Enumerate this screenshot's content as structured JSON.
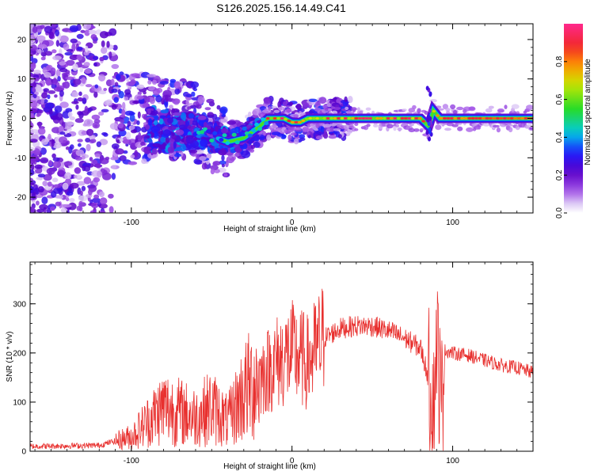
{
  "title": "S126.2025.156.14.49.C41",
  "chart_data": [
    {
      "type": "heatmap",
      "xlabel": "Height of straight line (km)",
      "ylabel": "Frequency (Hz)",
      "xlim": [
        -163,
        150
      ],
      "ylim": [
        -24,
        24
      ],
      "xticks": [
        -100,
        0,
        100
      ],
      "yticks": [
        -20,
        -10,
        0,
        10,
        20
      ],
      "colorbar": {
        "label": "Normalized spectral amplitude",
        "ticks": [
          "0.0",
          "0.2",
          "0.4",
          "0.6",
          "0.8"
        ],
        "range": [
          0,
          1
        ]
      },
      "ridge_frequency": [
        [
          -163,
          null
        ],
        [
          -60,
          -3
        ],
        [
          -40,
          -6
        ],
        [
          -30,
          -5
        ],
        [
          -20,
          -2
        ],
        [
          -15,
          0
        ],
        [
          -5,
          0
        ],
        [
          0,
          -1
        ],
        [
          5,
          -1
        ],
        [
          10,
          0
        ],
        [
          80,
          0
        ],
        [
          85,
          -2
        ],
        [
          88,
          2
        ],
        [
          92,
          0
        ],
        [
          150,
          0
        ]
      ]
    },
    {
      "type": "line",
      "xlabel": "Height of straight line (km)",
      "ylabel": "SNR (10 * v/v)",
      "xlim": [
        -163,
        150
      ],
      "ylim": [
        0,
        385
      ],
      "xticks": [
        -100,
        0,
        100
      ],
      "yticks": [
        0,
        100,
        200,
        300
      ],
      "series": [
        {
          "color": "#e8302e",
          "envelope": [
            [
              -163,
              10
            ],
            [
              -120,
              12
            ],
            [
              -100,
              30
            ],
            [
              -90,
              60
            ],
            [
              -80,
              90
            ],
            [
              -60,
              70
            ],
            [
              -50,
              90
            ],
            [
              -40,
              60
            ],
            [
              -30,
              120
            ],
            [
              -20,
              150
            ],
            [
              -10,
              180
            ],
            [
              0,
              200
            ],
            [
              10,
              180
            ],
            [
              20,
              230
            ],
            [
              30,
              250
            ],
            [
              40,
              255
            ],
            [
              50,
              255
            ],
            [
              60,
              245
            ],
            [
              70,
              230
            ],
            [
              80,
              210
            ],
            [
              85,
              150
            ],
            [
              88,
              110
            ],
            [
              90,
              240
            ],
            [
              93,
              80
            ],
            [
              95,
              205
            ],
            [
              100,
              200
            ],
            [
              110,
              195
            ],
            [
              120,
              185
            ],
            [
              130,
              175
            ],
            [
              140,
              170
            ],
            [
              150,
              160
            ]
          ]
        }
      ]
    }
  ]
}
